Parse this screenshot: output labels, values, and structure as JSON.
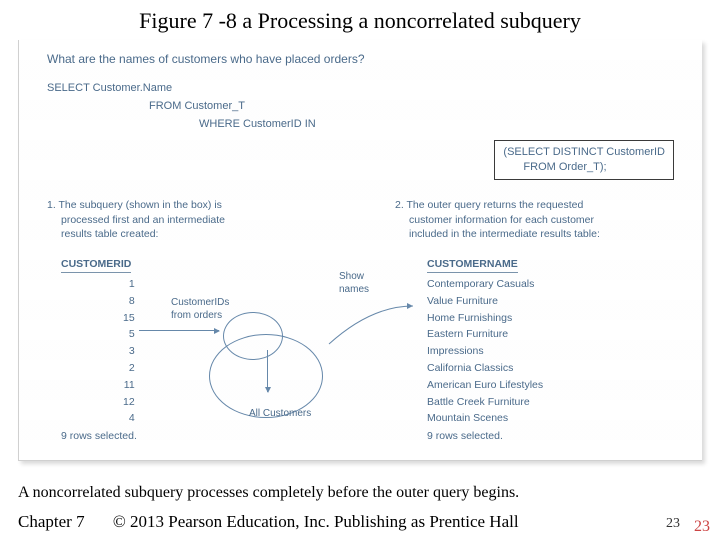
{
  "title": "Figure 7 -8 a Processing a noncorrelated subquery",
  "prompt": "What are the names of customers who have placed orders?",
  "sql": {
    "line1": "SELECT Customer.Name",
    "line2": "FROM Customer_T",
    "line3": "WHERE CustomerID IN",
    "box1": "(SELECT DISTINCT CustomerID",
    "box2": "FROM Order_T);"
  },
  "notes": {
    "n1": "1.  The subquery (shown in the box) is processed first and an intermediate results table created:",
    "n2": "2.  The outer query returns the requested customer information for each customer included in the intermediate results table:"
  },
  "left_table": {
    "header": "CUSTOMERID",
    "rows": [
      "1",
      "8",
      "15",
      "5",
      "3",
      "2",
      "11",
      "12",
      "4"
    ],
    "footer": "9 rows selected."
  },
  "right_table": {
    "header": "CUSTOMERNAME",
    "rows": [
      "Contemporary Casuals",
      "Value Furniture",
      "Home Furnishings",
      "Eastern Furniture",
      "Impressions",
      "California Classics",
      "American Euro Lifestyles",
      "Battle Creek Furniture",
      "Mountain Scenes"
    ],
    "footer": "9 rows selected."
  },
  "labels": {
    "inner": "CustomerIDs\nfrom orders",
    "outer": "All Customers",
    "show": "Show\nnames"
  },
  "caption": "A noncorrelated subquery processes completely before the outer query begins.",
  "footer_chapter": "Chapter 7",
  "footer_copy": "© 2013 Pearson Education, Inc.  Publishing as Prentice Hall",
  "page_inner": "23",
  "page_outer": "23",
  "colors": {
    "text_blue": "#4a6a8a",
    "ellipse": "#6688aa",
    "page_outer": "#c44444"
  }
}
